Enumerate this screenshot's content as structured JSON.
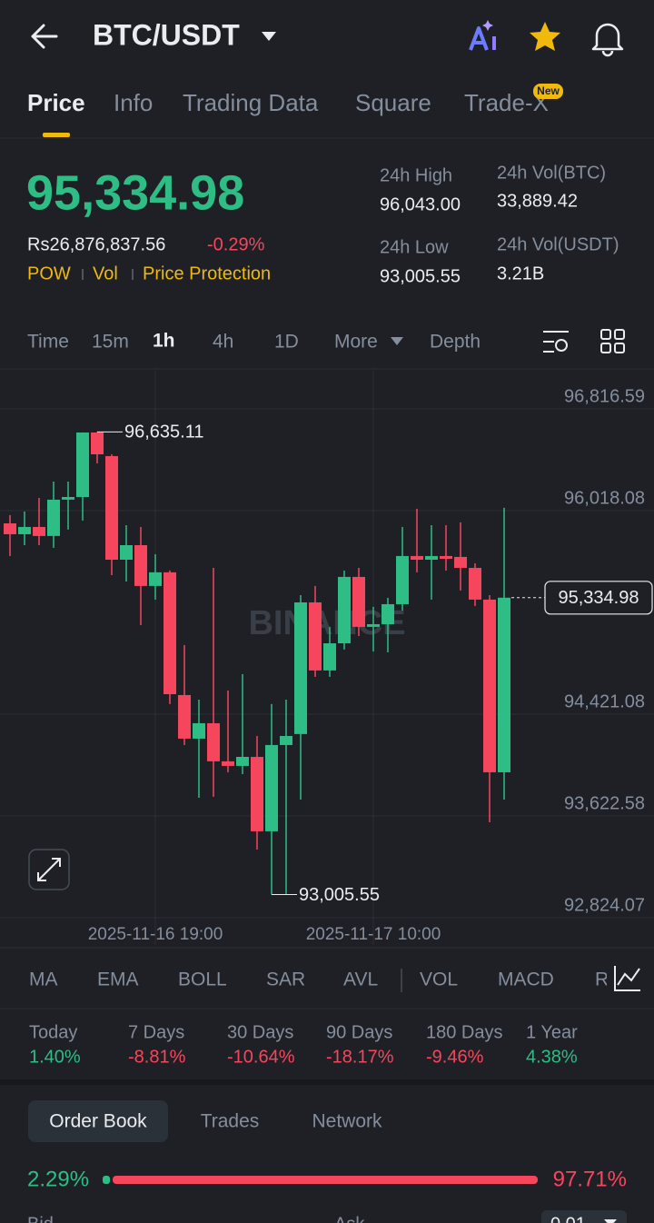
{
  "header": {
    "pair": "BTC/USDT"
  },
  "tabs": [
    "Price",
    "Info",
    "Trading Data",
    "Square",
    "Trade-X"
  ],
  "badge": "New",
  "price": "95,334.98",
  "fiat_price": "Rs26,876,837.56",
  "change": "-0.29%",
  "tags": [
    "POW",
    "Vol",
    "Price Protection"
  ],
  "stats": [
    {
      "label": "24h High",
      "value": "96,043.00"
    },
    {
      "label": "24h Vol(BTC)",
      "value": "33,889.42"
    },
    {
      "label": "24h Low",
      "value": "93,005.55"
    },
    {
      "label": "24h Vol(USDT)",
      "value": "3.21B"
    }
  ],
  "timeframes": [
    "Time",
    "15m",
    "1h",
    "4h",
    "1D",
    "More",
    "Depth"
  ],
  "chart_data": {
    "type": "candlestick",
    "categories": [
      null,
      null,
      null,
      null,
      null,
      null,
      null,
      null,
      null,
      null,
      "2025-11-16 19:00",
      null,
      null,
      null,
      null,
      null,
      null,
      null,
      null,
      null,
      null,
      null,
      null,
      null,
      null,
      "2025-11-17 10:00",
      null,
      null,
      null,
      null,
      null,
      null,
      null,
      null,
      null
    ],
    "open": [
      95918,
      95833,
      95890,
      95819,
      96104,
      96125,
      96631,
      96446,
      95633,
      95747,
      95427,
      95534,
      94571,
      94229,
      94350,
      94051,
      94015,
      94086,
      93502,
      94179,
      94265,
      95298,
      94764,
      94977,
      95498,
      95106,
      95127,
      95284,
      95662,
      95633,
      95662,
      95655,
      95569,
      95320,
      93965
    ],
    "high": [
      95983,
      96011,
      96118,
      96246,
      96246,
      96632,
      96635.11,
      96460,
      95904,
      95890,
      95676,
      95548,
      94963,
      94535,
      95569,
      94607,
      94735,
      94250,
      94500,
      94535,
      95355,
      95427,
      95106,
      95548,
      95569,
      95263,
      95334,
      95890,
      96033,
      95904,
      95904,
      95926,
      95605,
      95355,
      96040
    ],
    "low": [
      95662,
      95747,
      95747,
      95726,
      95869,
      95940,
      96389,
      95512,
      95462,
      95120,
      95320,
      94500,
      94179,
      93765,
      93773,
      93965,
      93951,
      93359,
      93005.55,
      93010,
      93751,
      94714,
      94714,
      94928,
      95034,
      94913,
      94906,
      95234,
      95534,
      95320,
      95548,
      95391,
      95270,
      93573,
      93751
    ],
    "close": [
      95833,
      95890,
      95819,
      96104,
      96125,
      96631,
      96460,
      95633,
      95747,
      95427,
      95534,
      94578,
      94229,
      94350,
      94051,
      94015,
      94086,
      93502,
      94179,
      94250,
      95298,
      94764,
      94977,
      95498,
      95106,
      95127,
      95284,
      95662,
      95633,
      95662,
      95640,
      95569,
      95320,
      93965,
      95334.98
    ],
    "up_color": "#2ebd85",
    "down_color": "#f6465d",
    "ylim": [
      92824.07,
      97123
    ],
    "yticks": [
      {
        "value": 96816.59,
        "label": "96,816.59"
      },
      {
        "value": 96018.08,
        "label": "96,018.08"
      },
      {
        "value": 94421.08,
        "label": "94,421.08"
      },
      {
        "value": 93622.58,
        "label": "93,622.58"
      },
      {
        "value": 92824.07,
        "label": "92,824.07"
      }
    ],
    "grid": true,
    "watermark": "BINANCE",
    "annotations": [
      {
        "value": 96635.11,
        "label": "96,635.11"
      },
      {
        "value": 93005.55,
        "label": "93,005.55"
      },
      {
        "value": 95334.98,
        "label": "95,334.98"
      }
    ]
  },
  "indicators": [
    "MA",
    "EMA",
    "BOLL",
    "SAR",
    "AVL",
    "VOL",
    "MACD",
    "R"
  ],
  "performance": [
    {
      "period": "Today",
      "change": "1.40%"
    },
    {
      "period": "7 Days",
      "change": "-8.81%"
    },
    {
      "period": "30 Days",
      "change": "-10.64%"
    },
    {
      "period": "90 Days",
      "change": "-18.17%"
    },
    {
      "period": "180 Days",
      "change": "-9.46%"
    },
    {
      "period": "1 Year",
      "change": "4.38%"
    }
  ],
  "order_book": {
    "tabs": [
      "Order Book",
      "Trades",
      "Network"
    ],
    "bid_ratio": "2.29%",
    "ask_ratio": "97.71%",
    "columns": [
      "Bid",
      "Ask"
    ],
    "precision": "0.01"
  }
}
